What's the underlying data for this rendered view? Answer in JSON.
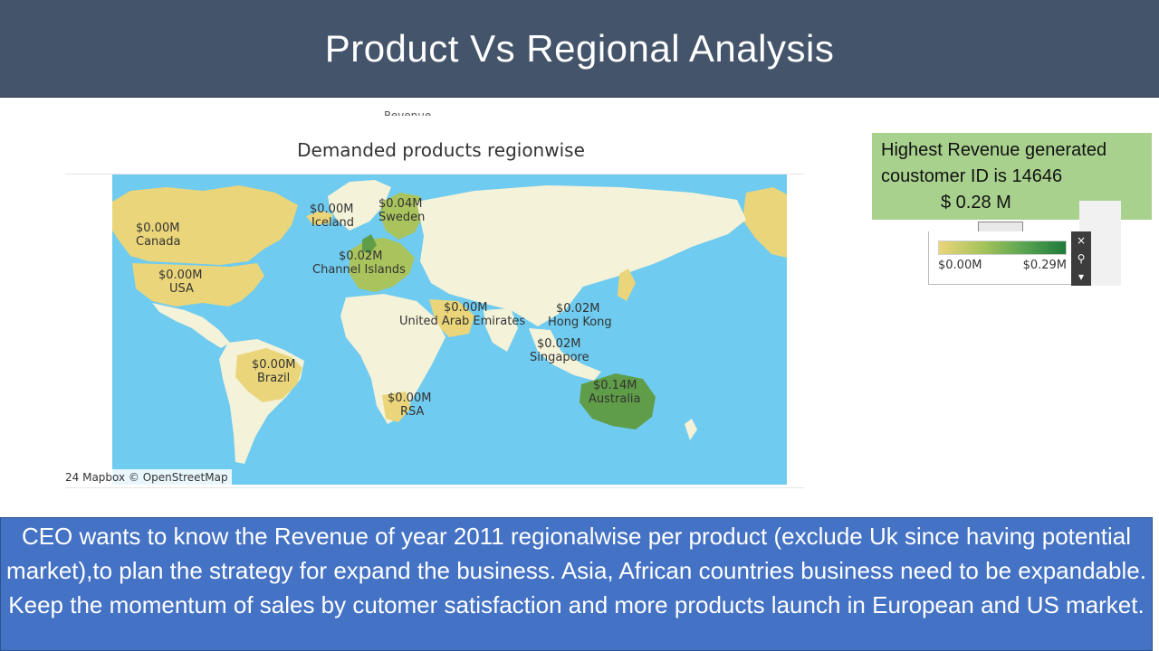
{
  "slide": {
    "title": "Product Vs Regional Analysis",
    "cut_label": "Revenue"
  },
  "map": {
    "title": "Demanded products regionwise",
    "attribution": "24 Mapbox © OpenStreetMap",
    "colors": {
      "ocean": "#6fcbef",
      "land": "#f4f2d9",
      "low": "#ead57a",
      "mid": "#a9c45c",
      "high": "#5f9d48"
    },
    "labels": [
      {
        "value": "$0.00M",
        "name": "Canada"
      },
      {
        "value": "$0.00M",
        "name": "USA"
      },
      {
        "value": "$0.00M",
        "name": "Iceland"
      },
      {
        "value": "$0.04M",
        "name": "Sweden"
      },
      {
        "value": "$0.02M",
        "name": "Channel Islands"
      },
      {
        "value": "$0.00M",
        "name": "United Arab Emirates"
      },
      {
        "value": "$0.02M",
        "name": "Hong Kong"
      },
      {
        "value": "$0.02M",
        "name": "Singapore"
      },
      {
        "value": "$0.00M",
        "name": "Brazil"
      },
      {
        "value": "$0.00M",
        "name": "RSA"
      },
      {
        "value": "$0.14M",
        "name": "Australia"
      }
    ]
  },
  "info": {
    "line1": "Highest Revenue generated",
    "line2": "coustomer ID  is 14646",
    "line3": "$ 0.28 M"
  },
  "legend": {
    "min_label": "$0.00M",
    "max_label": "$0.29M",
    "close_icon": "×",
    "pin_icon": "⚲",
    "menu_icon": "▾"
  },
  "note": {
    "text": "CEO wants to know the Revenue of year 2011 regionalwise per product (exclude Uk since having potential market),to plan the strategy for expand the business. Asia, African countries business need to be expandable. Keep the momentum of sales by cutomer satisfaction and more products launch in European and US  market."
  }
}
